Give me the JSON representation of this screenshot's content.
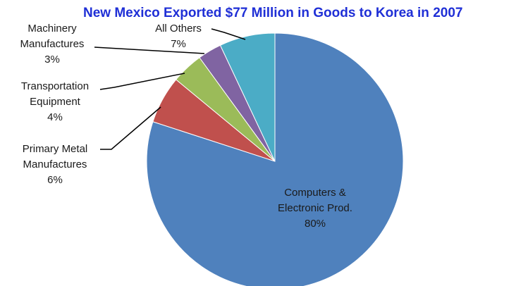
{
  "chart_data": {
    "type": "pie",
    "title": "New Mexico Exported $77 Million in Goods to Korea in 2007",
    "slices": [
      {
        "label_lines": [
          "Computers &",
          "Electronic Prod.",
          "80%"
        ],
        "value": 80,
        "color": "#4f81bd"
      },
      {
        "label_lines": [
          "Primary Metal",
          "Manufactures",
          "6%"
        ],
        "value": 6,
        "color": "#c0504d"
      },
      {
        "label_lines": [
          "Transportation",
          "Equipment",
          "4%"
        ],
        "value": 4,
        "color": "#9bbb59"
      },
      {
        "label_lines": [
          "Machinery",
          "Manufactures",
          "3%"
        ],
        "value": 3,
        "color": "#8064a2"
      },
      {
        "label_lines": [
          "All Others",
          "7%"
        ],
        "value": 7,
        "color": "#4bacc6"
      }
    ]
  }
}
